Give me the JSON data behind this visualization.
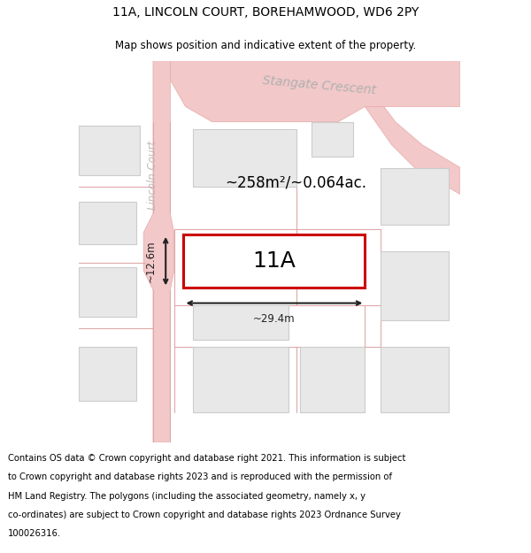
{
  "title": "11A, LINCOLN COURT, BOREHAMWOOD, WD6 2PY",
  "subtitle": "Map shows position and indicative extent of the property.",
  "footer_lines": [
    "Contains OS data © Crown copyright and database right 2021. This information is subject",
    "to Crown copyright and database rights 2023 and is reproduced with the permission of",
    "HM Land Registry. The polygons (including the associated geometry, namely x, y",
    "co-ordinates) are subject to Crown copyright and database rights 2023 Ordnance Survey",
    "100026316."
  ],
  "area_label": "~258m²/~0.064ac.",
  "plot_label": "11A",
  "dim_width": "~29.4m",
  "dim_height": "~12.6m",
  "street1": "Stangate Crescent",
  "street2": "Lincoln Court",
  "road_color": "#f2c8c8",
  "road_outline": "#e8a8a8",
  "building_fill": "#e8e8e8",
  "building_outline": "#cccccc",
  "plot_fill": "#ffffff",
  "plot_outline_color": "#cc0000",
  "dim_color": "#222222",
  "title_fontsize": 10,
  "subtitle_fontsize": 8.5,
  "footer_fontsize": 7.2,
  "area_fontsize": 12,
  "plot_label_fontsize": 18,
  "street_fontsize": 10
}
